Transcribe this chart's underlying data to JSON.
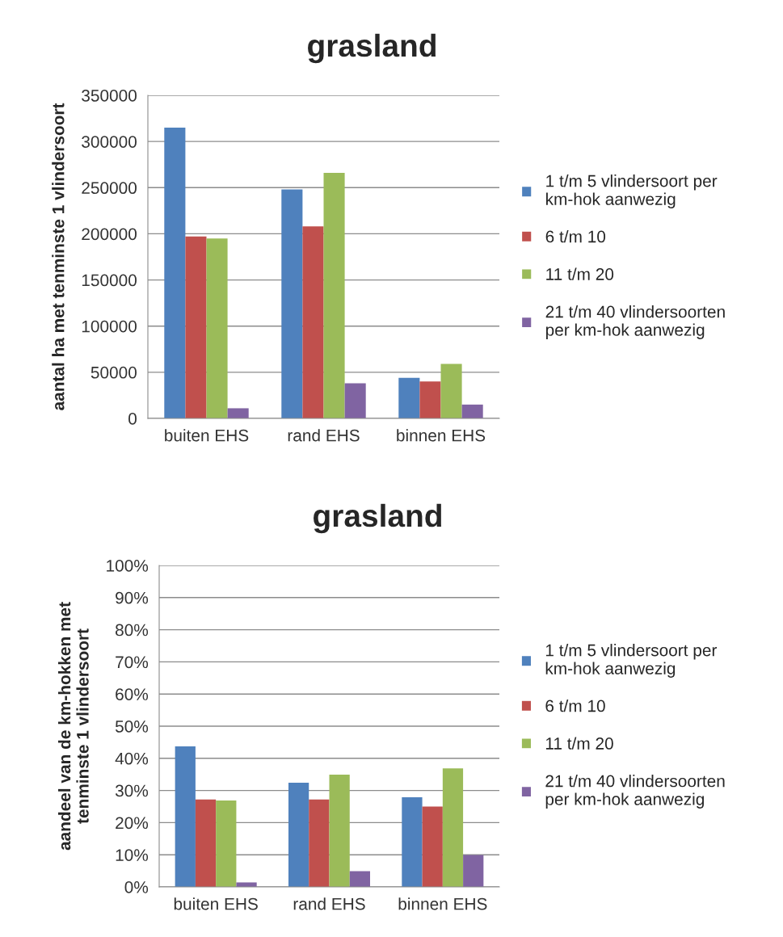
{
  "chart_data": [
    {
      "type": "bar",
      "title": "grasland",
      "ylabel": "aantal ha met tenminste 1 vlindersoort",
      "categories": [
        "buiten EHS",
        "rand EHS",
        "binnen EHS"
      ],
      "series": [
        {
          "name": "1 t/m 5 vlindersoort per\nkm-hok aanwezig",
          "color": "#4f81bd",
          "values": [
            315000,
            248000,
            44000
          ]
        },
        {
          "name": "6 t/m 10",
          "color": "#c0504d",
          "values": [
            197000,
            208000,
            40000
          ]
        },
        {
          "name": "11 t/m 20",
          "color": "#9bbb59",
          "values": [
            195000,
            266000,
            59000
          ]
        },
        {
          "name": "21 t/m 40 vlindersoorten\nper km-hok aanwezig",
          "color": "#8064a2",
          "values": [
            11000,
            38000,
            15000
          ]
        }
      ],
      "ylim": [
        0,
        350000
      ],
      "yticks": [
        0,
        50000,
        100000,
        150000,
        200000,
        250000,
        300000,
        350000
      ],
      "grid": "y",
      "legend": "right"
    },
    {
      "type": "bar",
      "title": "grasland",
      "ylabel": "aandeel van de km-hokken met\ntenminste 1 vlindersoort",
      "categories": [
        "buiten EHS",
        "rand EHS",
        "binnen EHS"
      ],
      "series": [
        {
          "name": "1 t/m 5 vlindersoort per\nkm-hok aanwezig",
          "color": "#4f81bd",
          "values": [
            43.7,
            32.4,
            27.9
          ]
        },
        {
          "name": "6 t/m 10",
          "color": "#c0504d",
          "values": [
            27.2,
            27.2,
            25.0
          ]
        },
        {
          "name": "11 t/m 20",
          "color": "#9bbb59",
          "values": [
            26.9,
            34.9,
            36.9
          ]
        },
        {
          "name": "21 t/m 40 vlindersoorten\nper km-hok aanwezig",
          "color": "#8064a2",
          "values": [
            1.4,
            4.9,
            9.9
          ]
        }
      ],
      "ylim": [
        0,
        100
      ],
      "yticks": [
        {
          "value": 0,
          "label": "0%"
        },
        {
          "value": 10,
          "label": "10%"
        },
        {
          "value": 20,
          "label": "20%"
        },
        {
          "value": 30,
          "label": "30%"
        },
        {
          "value": 40,
          "label": "40%"
        },
        {
          "value": 50,
          "label": "50%"
        },
        {
          "value": 60,
          "label": "60%"
        },
        {
          "value": 70,
          "label": "70%"
        },
        {
          "value": 80,
          "label": "80%"
        },
        {
          "value": 90,
          "label": "90%"
        },
        {
          "value": 100,
          "label": "100%"
        }
      ],
      "grid": "y",
      "legend": "right"
    }
  ]
}
